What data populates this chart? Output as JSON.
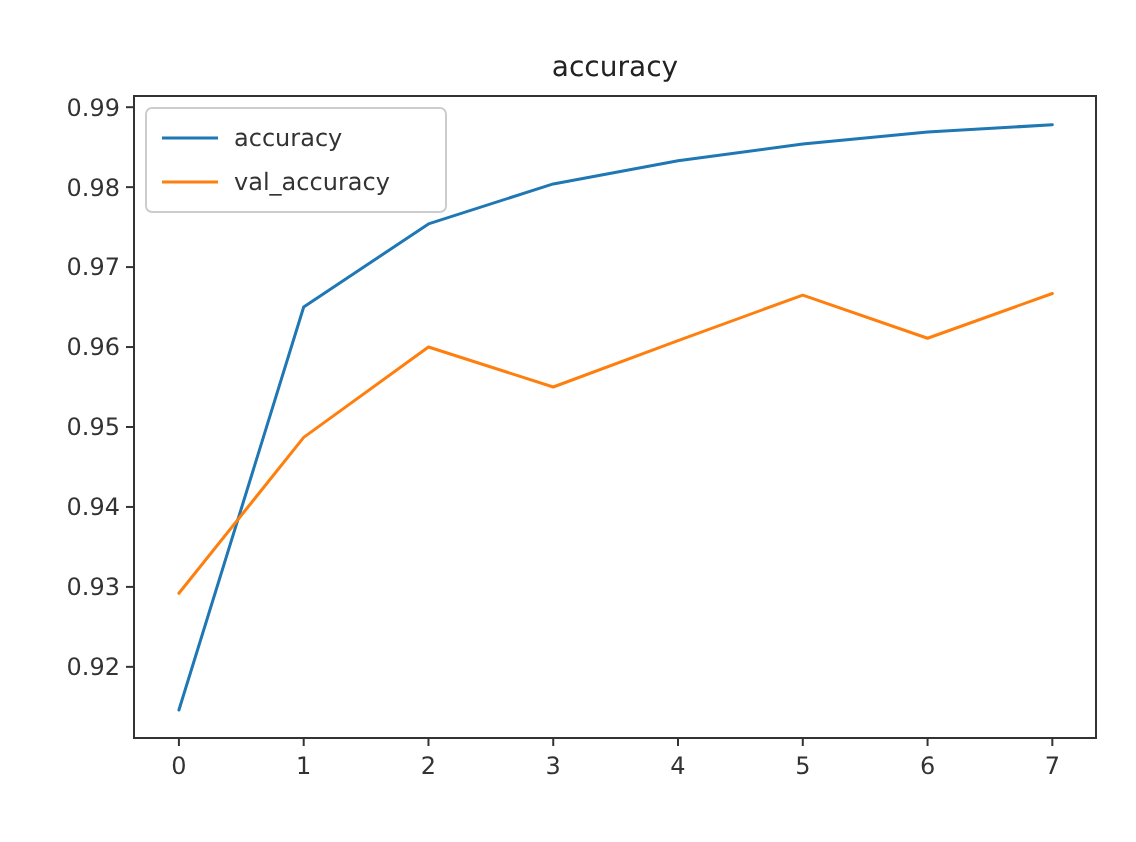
{
  "chart_data": {
    "type": "line",
    "title": "accuracy",
    "x": [
      0,
      1,
      2,
      3,
      4,
      5,
      6,
      7
    ],
    "series": [
      {
        "name": "accuracy",
        "color": "#1f77b4",
        "values": [
          0.9146,
          0.965,
          0.9754,
          0.9804,
          0.9833,
          0.9854,
          0.9869,
          0.9878
        ]
      },
      {
        "name": "val_accuracy",
        "color": "#ff7f0e",
        "values": [
          0.9292,
          0.9487,
          0.96,
          0.955,
          0.9608,
          0.9665,
          0.9611,
          0.9667
        ]
      }
    ],
    "xlim": [
      -0.36,
      7.35
    ],
    "ylim": [
      0.9111,
      0.9914
    ],
    "xticks": [
      0,
      1,
      2,
      3,
      4,
      5,
      6,
      7
    ],
    "yticks": [
      0.92,
      0.93,
      0.94,
      0.95,
      0.96,
      0.97,
      0.98,
      0.99
    ],
    "legend": "top left",
    "grid": false,
    "marker": "none",
    "line_style": "solid"
  }
}
